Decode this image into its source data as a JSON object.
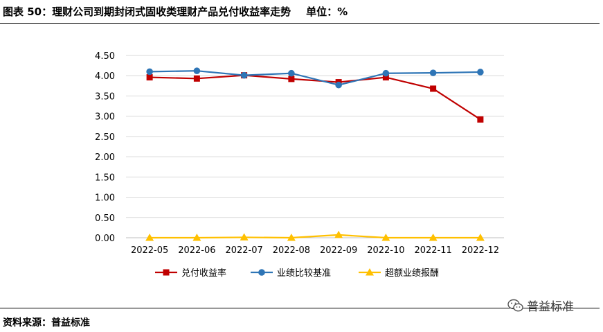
{
  "header": {
    "title": "图表 50：理财公司到期封闭式固收类理财产品兑付收益率走势",
    "unit": "单位：%"
  },
  "footer": {
    "source": "资料来源：普益标准",
    "watermark_icon": "wechat-icon",
    "watermark": "普益标准"
  },
  "chart_data": {
    "type": "line",
    "title": "",
    "xlabel": "",
    "ylabel": "",
    "categories": [
      "2022-05",
      "2022-06",
      "2022-07",
      "2022-08",
      "2022-09",
      "2022-10",
      "2022-11",
      "2022-12"
    ],
    "ylim": [
      0,
      4.5
    ],
    "yticks": [
      "0.00",
      "0.50",
      "1.00",
      "1.50",
      "2.00",
      "2.50",
      "3.00",
      "3.50",
      "4.00",
      "4.50"
    ],
    "grid": true,
    "legend": "bottom",
    "series": [
      {
        "name": "兑付收益率",
        "color": "#C00000",
        "marker": "square",
        "values": [
          3.96,
          3.93,
          4.01,
          3.92,
          3.84,
          3.96,
          3.68,
          2.92
        ]
      },
      {
        "name": "业绩比较基准",
        "color": "#2E75B6",
        "marker": "circle",
        "values": [
          4.1,
          4.12,
          4.01,
          4.06,
          3.77,
          4.06,
          4.07,
          4.09
        ]
      },
      {
        "name": "超额业绩报酬",
        "color": "#FFC000",
        "marker": "triangle",
        "values": [
          0.0,
          0.0,
          0.01,
          0.0,
          0.07,
          0.0,
          0.0,
          0.0
        ]
      }
    ]
  }
}
